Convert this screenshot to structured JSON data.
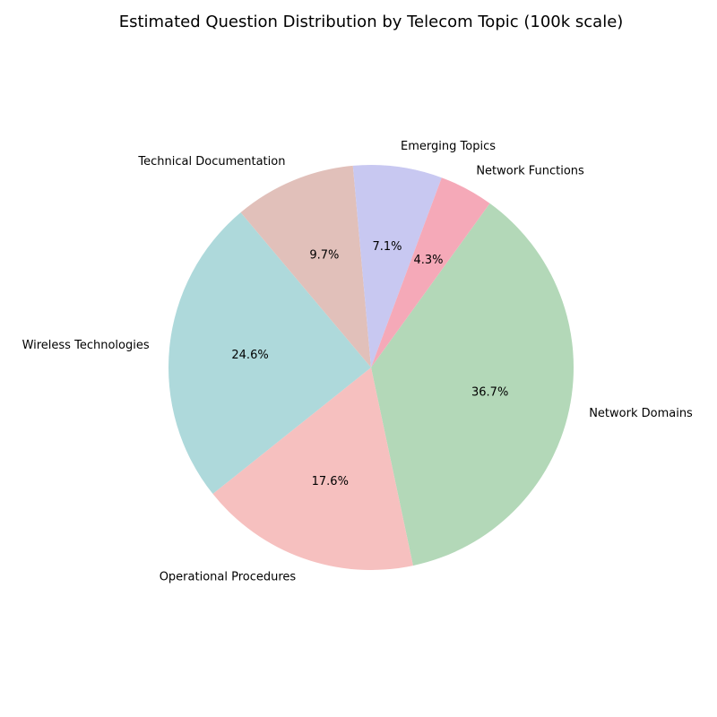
{
  "chart_data": {
    "type": "pie",
    "title": "Estimated Question Distribution by Telecom Topic (100k scale)",
    "slices": [
      {
        "label": "Network Domains",
        "value": 36.7,
        "pct_label": "36.7%",
        "color": "#b3d8b8"
      },
      {
        "label": "Operational Procedures",
        "value": 17.6,
        "pct_label": "17.6%",
        "color": "#f6c0bf"
      },
      {
        "label": "Wireless Technologies",
        "value": 24.6,
        "pct_label": "24.6%",
        "color": "#aed9db"
      },
      {
        "label": "Technical Documentation",
        "value": 9.7,
        "pct_label": "9.7%",
        "color": "#e1c0ba"
      },
      {
        "label": "Emerging Topics",
        "value": 7.1,
        "pct_label": "7.1%",
        "color": "#c8c8f1"
      },
      {
        "label": "Network Functions",
        "value": 4.3,
        "pct_label": "4.3%",
        "color": "#f5a9b8"
      }
    ]
  }
}
